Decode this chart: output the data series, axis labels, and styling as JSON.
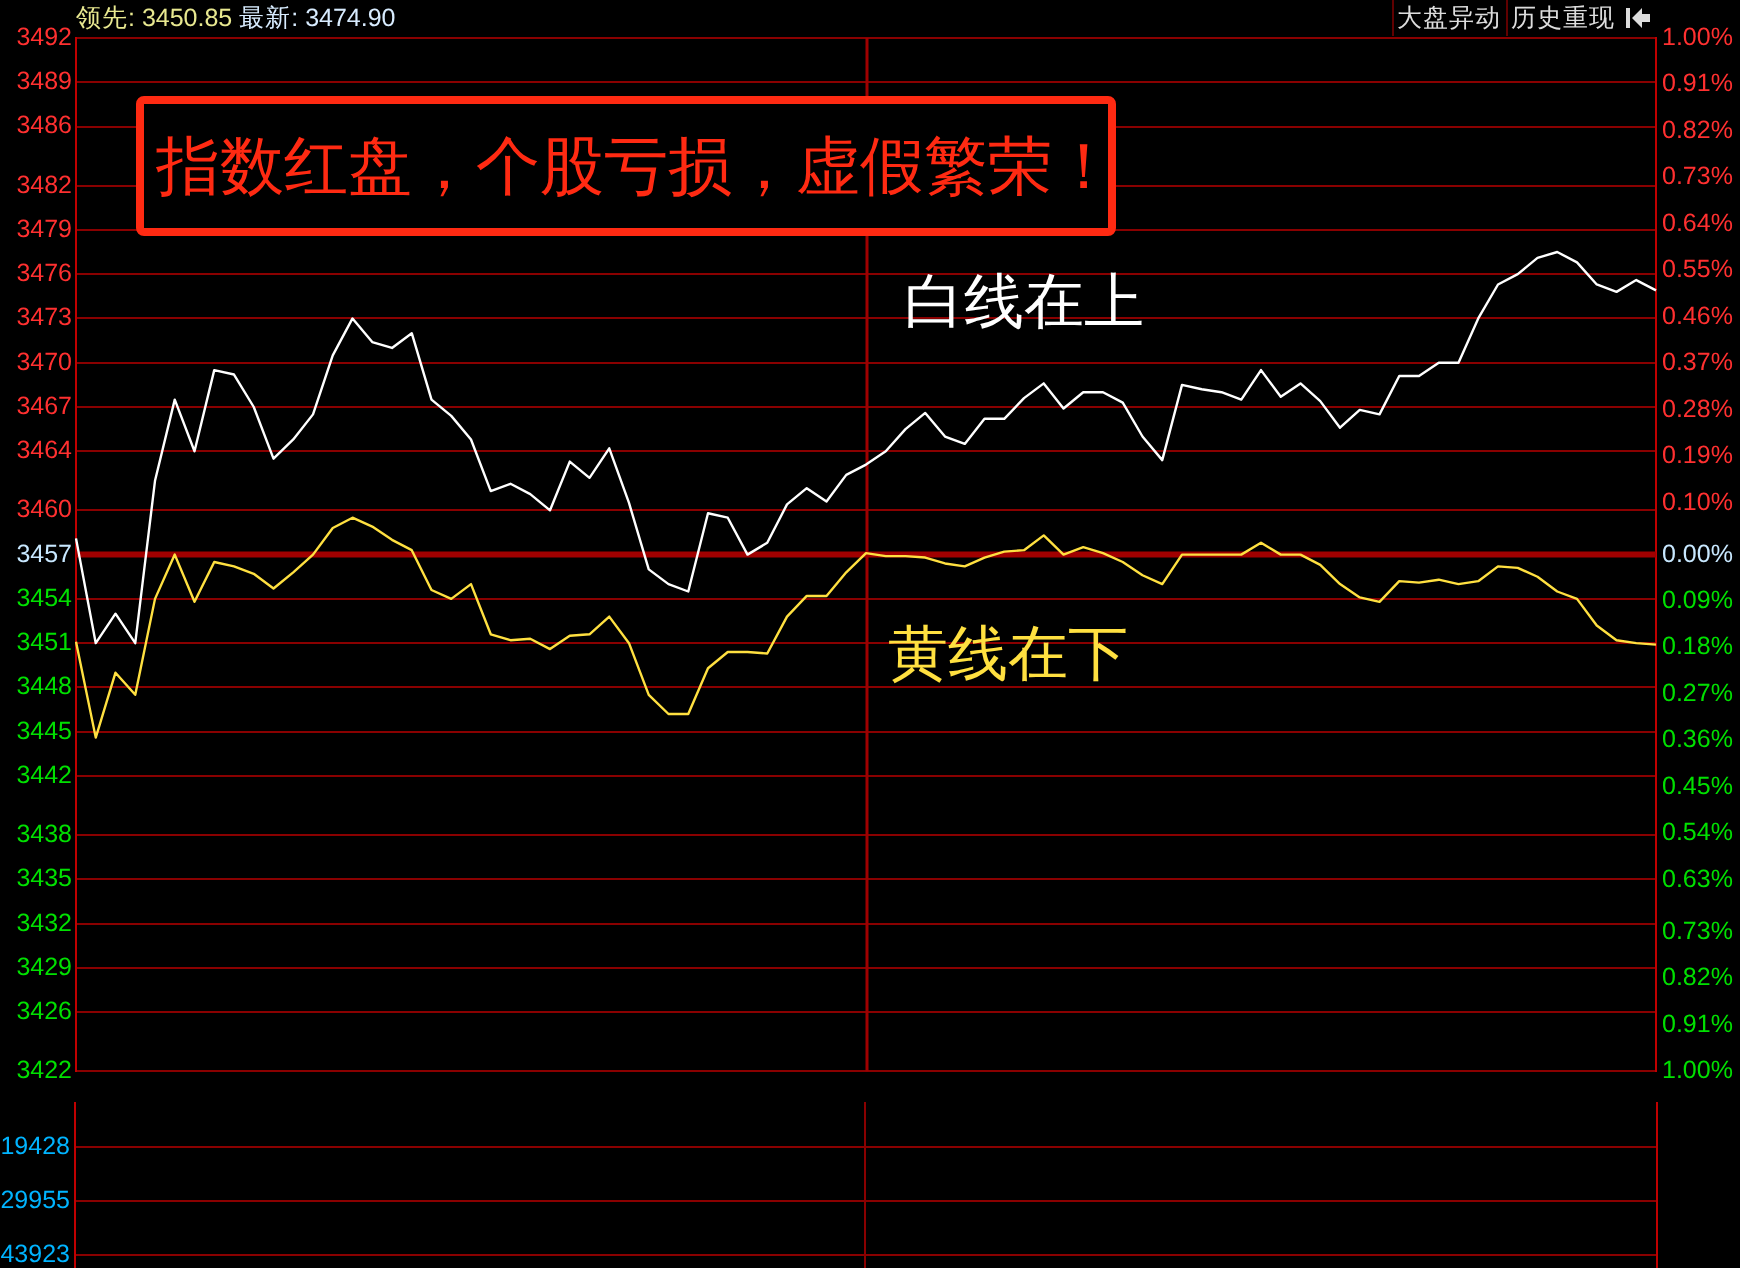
{
  "chart_data": {
    "type": "line",
    "title": "指数红盘，个股亏损，虚假繁荣！",
    "annotations": [
      "领先: 3450.85",
      "最新: 3474.90",
      "大盘异动",
      "历史重现",
      "19428",
      "29955",
      "43923"
    ],
    "categories": [
      null,
      null,
      null,
      null,
      null,
      null,
      null,
      null,
      null,
      null,
      null,
      null,
      null,
      null,
      null,
      null,
      null,
      null,
      null,
      null,
      null,
      null,
      null,
      null,
      null,
      null,
      null,
      null,
      null,
      null,
      null,
      null,
      null,
      null,
      null,
      null,
      null,
      null,
      null,
      null,
      null,
      null,
      null,
      null,
      null,
      null,
      null,
      null,
      null,
      null,
      null,
      null,
      null,
      null,
      null,
      null,
      null,
      null,
      null,
      null,
      null,
      null,
      null,
      null,
      null,
      null,
      null,
      null,
      null,
      null,
      null,
      null,
      null,
      null,
      null,
      null,
      null,
      null,
      null,
      null,
      null
    ],
    "ylim": [
      3422,
      3492
    ],
    "yticks": [
      3422,
      3426,
      3429,
      3432,
      3435,
      3438,
      3442,
      3445,
      3448,
      3451,
      3454,
      3457,
      3460,
      3464,
      3467,
      3470,
      3473,
      3476,
      3479,
      3482,
      3486,
      3489,
      3492
    ],
    "y2lim": [
      -1,
      1
    ],
    "y2ticks": [
      {
        "value": -1,
        "label": "1.00%"
      },
      {
        "value": -0.91,
        "label": "0.91%"
      },
      {
        "value": -0.82,
        "label": "0.82%"
      },
      {
        "value": -0.73,
        "label": "0.73%"
      },
      {
        "value": -0.63,
        "label": "0.63%"
      },
      {
        "value": -0.54,
        "label": "0.54%"
      },
      {
        "value": -0.45,
        "label": "0.45%"
      },
      {
        "value": -0.36,
        "label": "0.36%"
      },
      {
        "value": -0.27,
        "label": "0.27%"
      },
      {
        "value": -0.18,
        "label": "0.18%"
      },
      {
        "value": -0.09,
        "label": "0.09%"
      },
      {
        "value": 0,
        "label": "0.00%"
      },
      {
        "value": 0.1,
        "label": "0.10%"
      },
      {
        "value": 0.19,
        "label": "0.19%"
      },
      {
        "value": 0.28,
        "label": "0.28%"
      },
      {
        "value": 0.37,
        "label": "0.37%"
      },
      {
        "value": 0.46,
        "label": "0.46%"
      },
      {
        "value": 0.55,
        "label": "0.55%"
      },
      {
        "value": 0.64,
        "label": "0.64%"
      },
      {
        "value": 0.73,
        "label": "0.73%"
      },
      {
        "value": 0.82,
        "label": "0.82%"
      },
      {
        "value": 0.91,
        "label": "0.91%"
      },
      {
        "value": 1,
        "label": "1.00%"
      }
    ],
    "ref_lines": [
      {
        "axis": "y",
        "value": 3457,
        "color": "#a00000"
      }
    ],
    "grid": "y",
    "legend": false,
    "marker": "none",
    "line_style": "solid",
    "series": [
      {
        "name": "白线在上",
        "color": "#ffffff",
        "values": [
          3458.1,
          3451.0,
          3453.0,
          3451.0,
          3462.0,
          3467.5,
          3464.0,
          3469.5,
          3469.2,
          3467.0,
          3463.5,
          3464.8,
          3466.5,
          3470.5,
          3473.0,
          3471.4,
          3471.0,
          3472.0,
          3467.5,
          3466.4,
          3464.8,
          3461.3,
          3461.8,
          3461.1,
          3460.0,
          3463.3,
          3462.2,
          3464.2,
          3460.5,
          3456.0,
          3455.0,
          3454.5,
          3459.8,
          3459.5,
          3457.0,
          3457.8,
          3460.4,
          3461.5,
          3460.6,
          3462.4,
          3463.1,
          3464.0,
          3465.5,
          3466.6,
          3465.0,
          3464.5,
          3466.2,
          3466.2,
          3467.6,
          3468.6,
          3466.9,
          3468.0,
          3468.0,
          3467.3,
          3465.0,
          3463.4,
          3468.5,
          3468.2,
          3468.0,
          3467.5,
          3469.5,
          3467.7,
          3468.6,
          3467.4,
          3465.6,
          3466.8,
          3466.5,
          3469.1,
          3469.1,
          3470.0,
          3470.0,
          3473.0,
          3475.3,
          3476.0,
          3477.1,
          3477.5,
          3476.8,
          3475.3,
          3474.8,
          3475.6,
          3474.9
        ]
      },
      {
        "name": "黄线在下",
        "color": "#ffe040",
        "values": [
          3451.1,
          3444.6,
          3449.0,
          3447.5,
          3454.0,
          3457.0,
          3453.8,
          3456.5,
          3456.2,
          3455.7,
          3454.7,
          3455.8,
          3457.0,
          3458.8,
          3459.5,
          3458.9,
          3458.0,
          3457.3,
          3454.6,
          3454.0,
          3455.0,
          3451.6,
          3451.2,
          3451.3,
          3450.6,
          3451.5,
          3451.6,
          3452.8,
          3451.0,
          3447.5,
          3446.2,
          3446.2,
          3449.3,
          3450.4,
          3450.4,
          3450.3,
          3452.8,
          3454.2,
          3454.2,
          3455.8,
          3457.1,
          3456.9,
          3456.9,
          3456.8,
          3456.4,
          3456.2,
          3456.8,
          3457.2,
          3457.3,
          3458.3,
          3457.0,
          3457.5,
          3457.1,
          3456.5,
          3455.6,
          3455.0,
          3457.0,
          3457.0,
          3457.0,
          3457.0,
          3457.8,
          3457.0,
          3457.0,
          3456.3,
          3455.0,
          3454.1,
          3453.8,
          3455.2,
          3455.1,
          3455.3,
          3455.0,
          3455.2,
          3456.2,
          3456.1,
          3455.5,
          3454.5,
          3454.0,
          3452.2,
          3451.2,
          3451.0,
          3450.9
        ]
      }
    ]
  }
}
